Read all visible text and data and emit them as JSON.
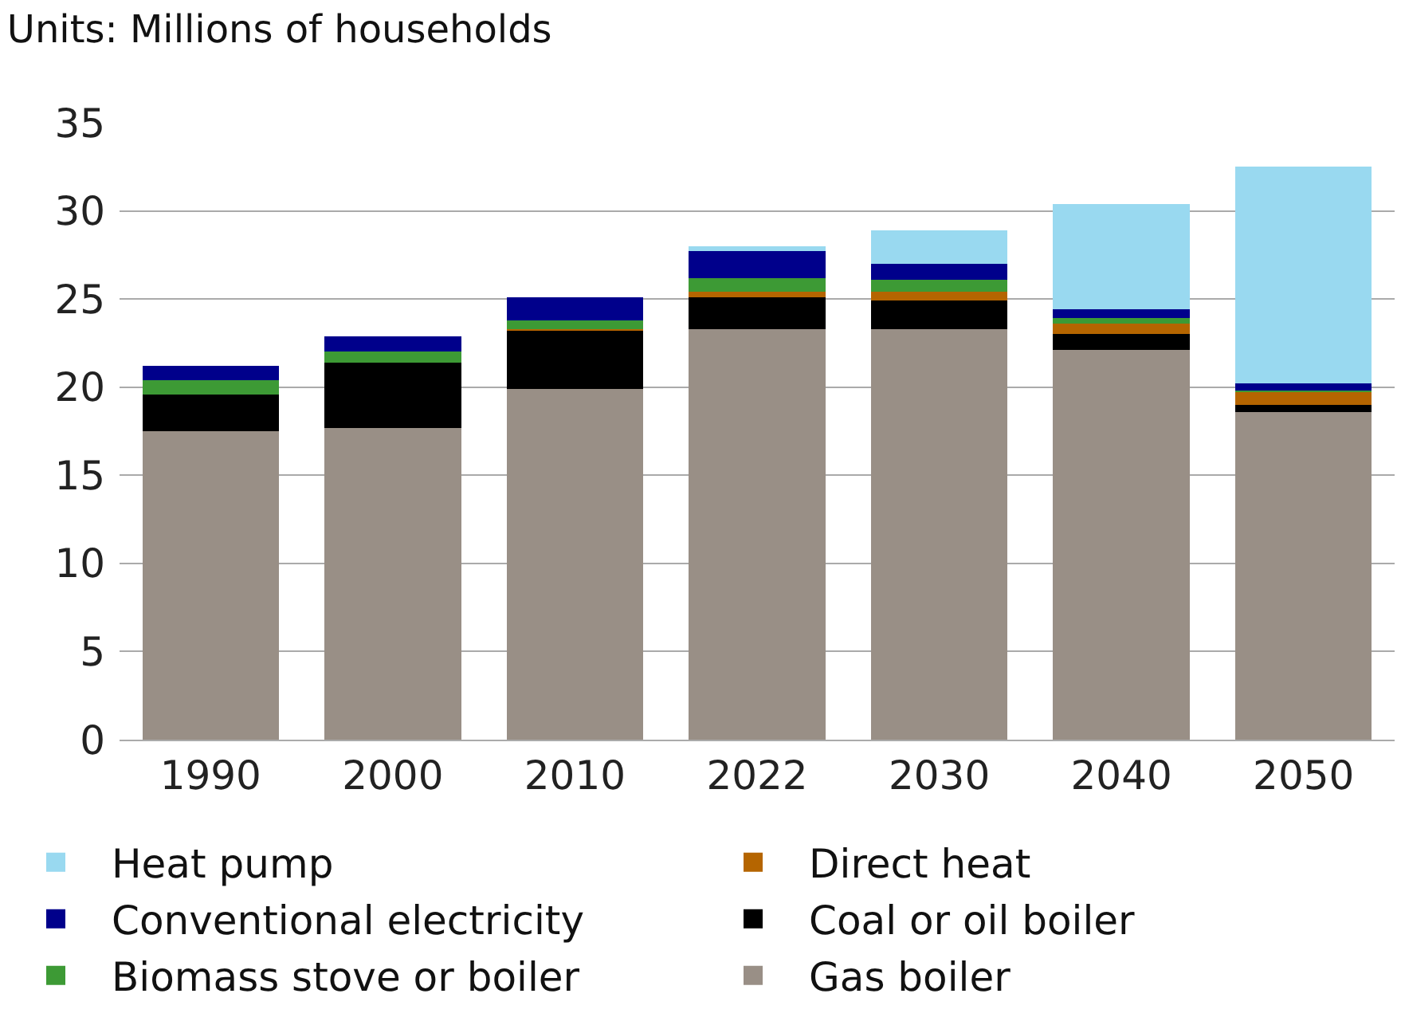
{
  "chart_data": {
    "type": "bar",
    "title": "Units: Millions of households",
    "stacked": true,
    "categories": [
      "1990",
      "2000",
      "2010",
      "2022",
      "2030",
      "2040",
      "2050"
    ],
    "series": [
      {
        "name": "Gas boiler",
        "color": "#998f86",
        "values": [
          17.5,
          17.7,
          19.9,
          23.3,
          23.3,
          22.1,
          18.6
        ]
      },
      {
        "name": "Coal or oil boiler",
        "color": "#000000",
        "values": [
          2.1,
          3.7,
          3.3,
          1.8,
          1.6,
          0.9,
          0.4
        ]
      },
      {
        "name": "Direct heat",
        "color": "#b56500",
        "values": [
          0,
          0,
          0.1,
          0.3,
          0.5,
          0.6,
          0.7
        ]
      },
      {
        "name": "Biomass stove or boiler",
        "color": "#3d9a35",
        "values": [
          0.8,
          0.6,
          0.5,
          0.8,
          0.7,
          0.3,
          0.1
        ]
      },
      {
        "name": "Conventional electricity",
        "color": "#00008b",
        "values": [
          0.8,
          0.9,
          1.3,
          1.5,
          0.9,
          0.5,
          0.4
        ]
      },
      {
        "name": "Heat pump",
        "color": "#99d9f0",
        "values": [
          0,
          0,
          0,
          0.3,
          1.9,
          6.0,
          12.3
        ]
      }
    ],
    "ylim": [
      0,
      35
    ],
    "yticks": [
      0,
      5,
      10,
      15,
      20,
      25,
      30,
      35
    ],
    "grid": "y",
    "legend": "bottom"
  }
}
